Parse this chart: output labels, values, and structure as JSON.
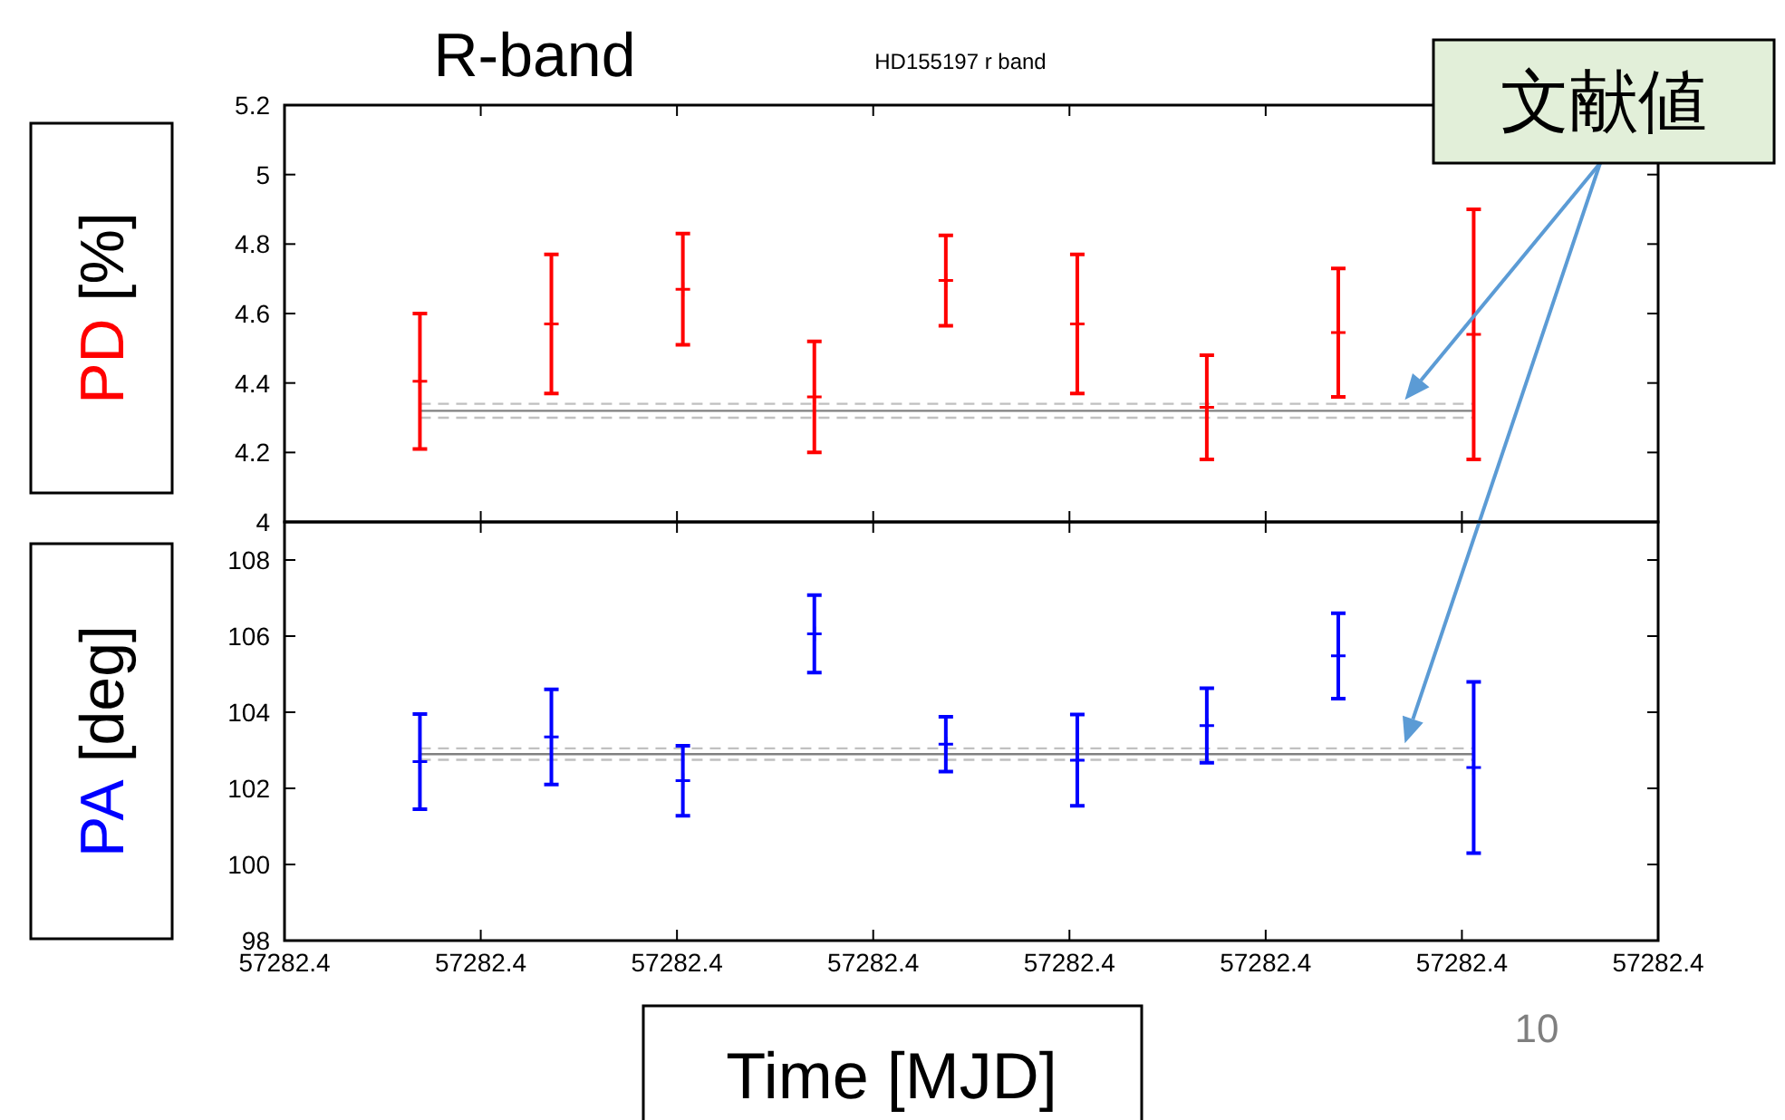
{
  "chart_data": [
    {
      "type": "scatter",
      "title": "R-band",
      "subtitle": "HD155197 r band",
      "ylabel": "PD [%]",
      "xlim": [
        57282.36,
        57282.43
      ],
      "xticks": [
        {
          "value": 57282.36,
          "label": null
        },
        {
          "value": 57282.37,
          "label": null
        },
        {
          "value": 57282.38,
          "label": null
        },
        {
          "value": 57282.39,
          "label": null
        },
        {
          "value": 57282.4,
          "label": null
        },
        {
          "value": 57282.41,
          "label": null
        },
        {
          "value": 57282.42,
          "label": null
        },
        {
          "value": 57282.43,
          "label": null
        }
      ],
      "ylim": [
        4,
        5.2
      ],
      "yticks": [
        4,
        4.2,
        4.4,
        4.6,
        4.8,
        5,
        5.2
      ],
      "tick_labels": "y",
      "marker": "cross",
      "x": [
        57282.3669,
        57282.3736,
        57282.3803,
        57282.387,
        57282.3937,
        57282.4004,
        57282.407,
        57282.4137,
        57282.4206
      ],
      "series": [
        {
          "color": "#ff0000",
          "values": [
            4.405,
            4.57,
            4.67,
            4.36,
            4.695,
            4.57,
            4.33,
            4.545,
            4.54
          ],
          "errors": [
            0.195,
            0.2,
            0.16,
            0.16,
            0.13,
            0.2,
            0.15,
            0.185,
            0.36
          ]
        }
      ],
      "ref_lines": [
        {
          "axis": "y",
          "value": 4.32,
          "color": "#808080",
          "line_style": "solid"
        },
        {
          "axis": "y",
          "value": 4.34,
          "color": "#c0c0c0",
          "line_style": "dashed"
        },
        {
          "axis": "y",
          "value": 4.3,
          "color": "#c0c0c0",
          "line_style": "dashed"
        }
      ],
      "annotations": [
        "文献値"
      ]
    },
    {
      "type": "scatter",
      "ylabel": "PA [deg]",
      "xlabel": "Time [MJD]",
      "xlim": [
        57282.36,
        57282.43
      ],
      "xticks": [
        {
          "value": 57282.36,
          "label": "57282.4"
        },
        {
          "value": 57282.37,
          "label": "57282.4"
        },
        {
          "value": 57282.38,
          "label": "57282.4"
        },
        {
          "value": 57282.39,
          "label": "57282.4"
        },
        {
          "value": 57282.4,
          "label": "57282.4"
        },
        {
          "value": 57282.41,
          "label": "57282.4"
        },
        {
          "value": 57282.42,
          "label": "57282.4"
        },
        {
          "value": 57282.43,
          "label": "57282.4"
        }
      ],
      "ylim": [
        98,
        109
      ],
      "yticks": [
        98,
        100,
        102,
        104,
        106,
        108
      ],
      "marker": "cross",
      "x": [
        57282.3669,
        57282.3736,
        57282.3803,
        57282.387,
        57282.3937,
        57282.4004,
        57282.407,
        57282.4137,
        57282.4206
      ],
      "series": [
        {
          "color": "#0000ff",
          "values": [
            102.7,
            103.35,
            102.2,
            106.06,
            103.16,
            102.74,
            103.65,
            105.48,
            102.55
          ],
          "errors": [
            1.25,
            1.25,
            0.92,
            1.02,
            0.72,
            1.2,
            0.98,
            1.12,
            2.25
          ]
        }
      ],
      "ref_lines": [
        {
          "axis": "y",
          "value": 102.9,
          "color": "#808080",
          "line_style": "solid"
        },
        {
          "axis": "y",
          "value": 103.05,
          "color": "#c0c0c0",
          "line_style": "dashed"
        },
        {
          "axis": "y",
          "value": 102.75,
          "color": "#c0c0c0",
          "line_style": "dashed"
        }
      ],
      "annotations": [
        "10"
      ]
    }
  ]
}
